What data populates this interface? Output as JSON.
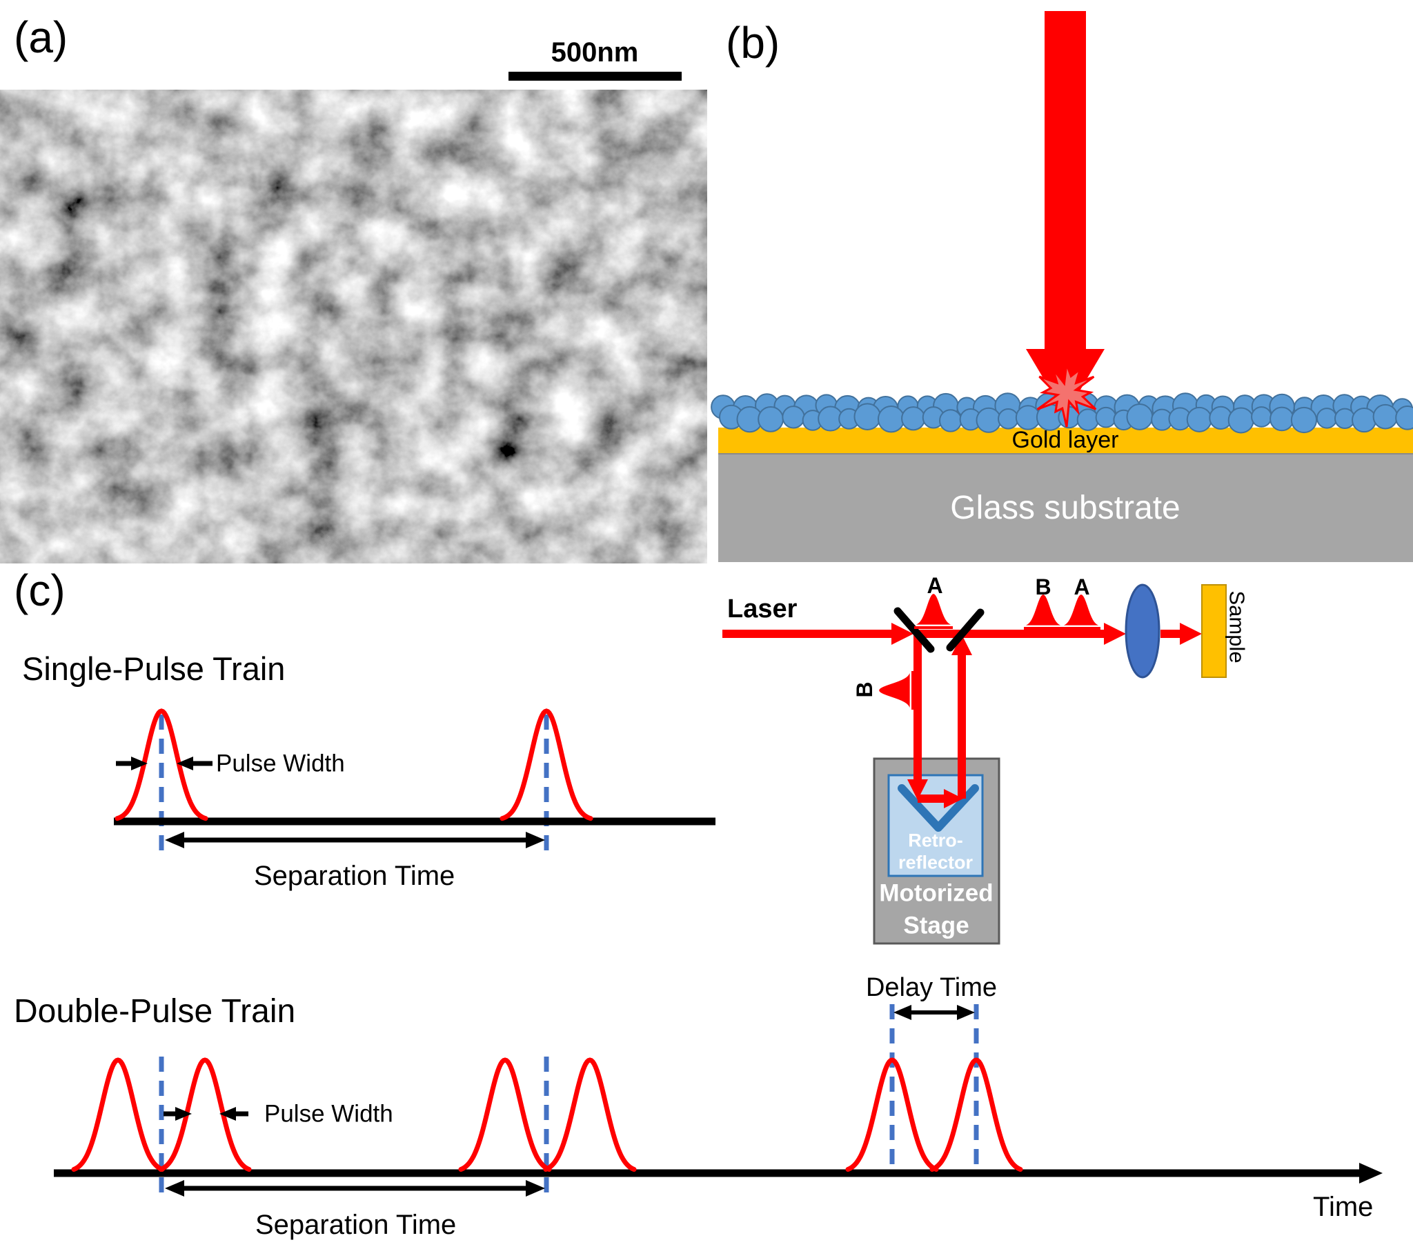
{
  "figure": {
    "panel_a": {
      "label": "(a)",
      "scale_bar_text": "500nm"
    },
    "panel_b": {
      "label": "(b)",
      "gold_layer": "Gold layer",
      "glass_substrate": "Glass substrate",
      "laser": "Laser",
      "pulse_label_a_inner": "A",
      "pulse_label_b_outer": "B",
      "pulse_label_a_outer": "A",
      "pulse_label_b_delayed": "B",
      "sample": "Sample",
      "retroreflector_line1": "Retro-",
      "retroreflector_line2": "reflector",
      "stage_line1": "Motorized",
      "stage_line2": "Stage"
    },
    "panel_c": {
      "label": "(c)",
      "single_pulse_title": "Single-Pulse Train",
      "double_pulse_title": "Double-Pulse Train",
      "pulse_width_single": "Pulse Width",
      "separation_time_single": "Separation Time",
      "pulse_width_double": "Pulse Width",
      "separation_time_double": "Separation Time",
      "delay_time": "Delay Time",
      "time_axis": "Time"
    },
    "colors": {
      "beam_red": "#FF0000",
      "burst_fill": "#F4726E",
      "particle_blue": "#5B9BD5",
      "particle_border": "#41719C",
      "gold": "#FFC000",
      "gold_border": "#BF9000",
      "glass_gray": "#A6A6A6",
      "stage_gray": "#A6A6A6",
      "stage_border": "#595959",
      "retro_fill": "#BDD7EE",
      "retro_blue": "#2E75B6",
      "lens_blue": "#4472C4",
      "lens_border": "#2E5395",
      "dash_blue": "#4472C4",
      "black": "#000000"
    }
  }
}
